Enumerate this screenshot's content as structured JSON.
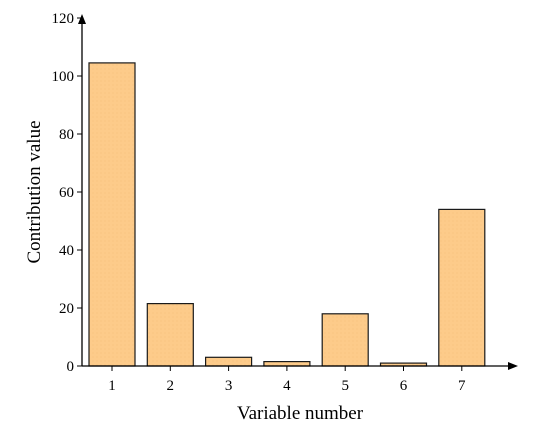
{
  "chart_data": {
    "type": "bar",
    "categories": [
      "1",
      "2",
      "3",
      "4",
      "5",
      "6",
      "7"
    ],
    "values": [
      104.5,
      21.5,
      3,
      1.5,
      18,
      1,
      54
    ],
    "xlabel": "Variable number",
    "ylabel": "Contribution value",
    "ylim": [
      0,
      120
    ],
    "yticks": [
      "0",
      "20",
      "40",
      "60",
      "80",
      "100",
      "120"
    ],
    "grid": false,
    "bar_fill": "#FDCB8A",
    "bar_stroke": "#1a1a1a"
  }
}
